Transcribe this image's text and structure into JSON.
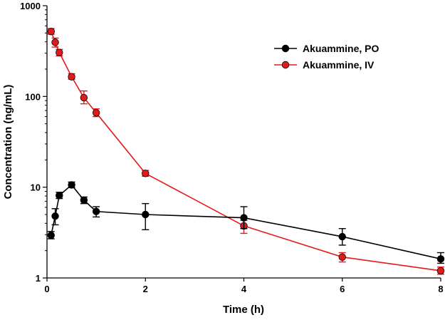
{
  "chart_data": {
    "type": "line",
    "title": "",
    "xlabel": "Time (h)",
    "ylabel": "Concentration (ng/mL)",
    "xlim": [
      0,
      8
    ],
    "ylim": [
      1,
      1000
    ],
    "y_scale": "log",
    "grid": false,
    "legend_position": "top-right",
    "x_ticks": [
      "0",
      "2",
      "4",
      "6",
      "8"
    ],
    "y_ticks": [
      "1",
      "10",
      "100",
      "1000"
    ],
    "series": [
      {
        "name": "Akuammine, PO",
        "color": "#000000",
        "x": [
          0.083,
          0.167,
          0.25,
          0.5,
          0.75,
          1,
          2,
          4,
          6,
          8
        ],
        "y": [
          2.95,
          4.8,
          8.1,
          10.6,
          7.2,
          5.4,
          5.0,
          4.6,
          2.85,
          1.62
        ],
        "err_lower": [
          2.7,
          3.85,
          7.5,
          9.9,
          6.6,
          4.7,
          3.4,
          3.5,
          2.3,
          1.45
        ],
        "err_upper": [
          3.25,
          5.8,
          8.8,
          11.4,
          7.8,
          6.1,
          6.6,
          6.1,
          3.5,
          1.9
        ]
      },
      {
        "name": "Akuammine, IV",
        "color": "#e31a1c",
        "x": [
          0.083,
          0.167,
          0.25,
          0.5,
          0.75,
          1,
          2,
          4,
          6,
          8
        ],
        "y": [
          520,
          395,
          305,
          165,
          97,
          66,
          14.2,
          3.75,
          1.7,
          1.2
        ],
        "err_lower": [
          485,
          350,
          280,
          155,
          83,
          60,
          13.2,
          3.1,
          1.5,
          1.1
        ],
        "err_upper": [
          560,
          440,
          330,
          178,
          115,
          73,
          15.3,
          4.3,
          1.9,
          1.32
        ]
      }
    ]
  }
}
